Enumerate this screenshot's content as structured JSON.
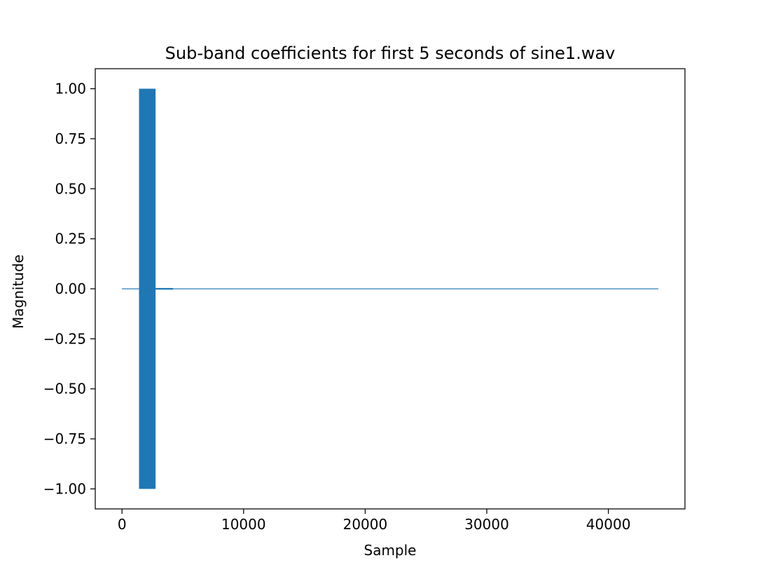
{
  "chart_data": {
    "type": "line",
    "title": "Sub-band coefficients for first 5 seconds of sine1.wav",
    "xlabel": "Sample",
    "ylabel": "Magnitude",
    "xlim": [
      -2200,
      46300
    ],
    "ylim": [
      -1.1,
      1.1
    ],
    "x_ticks": [
      0,
      10000,
      20000,
      30000,
      40000
    ],
    "x_tick_labels": [
      "0",
      "10000",
      "20000",
      "30000",
      "40000"
    ],
    "y_ticks": [
      1.0,
      0.75,
      0.5,
      0.25,
      0.0,
      -0.25,
      -0.5,
      -0.75,
      -1.0
    ],
    "y_tick_labels": [
      "1.00",
      "0.75",
      "0.50",
      "0.25",
      "0.00",
      "−0.25",
      "−0.50",
      "−0.75",
      "−1.00"
    ],
    "grid": false,
    "legend": "none",
    "series": [
      {
        "color": "#1f77b4",
        "x_range": [
          0,
          44100
        ],
        "segments": [
          {
            "x_start": 0,
            "x_end": 1400,
            "amplitude": 0.002
          },
          {
            "x_start": 1400,
            "x_end": 2760,
            "amplitude": 1.0
          },
          {
            "x_start": 2760,
            "x_end": 4200,
            "amplitude": 0.004
          },
          {
            "x_start": 4200,
            "x_end": 5500,
            "amplitude": 0.0005
          },
          {
            "x_start": 5500,
            "x_end": 8300,
            "amplitude": 0.002
          },
          {
            "x_start": 8300,
            "x_end": 13800,
            "amplitude": 0.0008
          },
          {
            "x_start": 13800,
            "x_end": 16500,
            "amplitude": 0.002
          },
          {
            "x_start": 16500,
            "x_end": 19400,
            "amplitude": 0.0008
          },
          {
            "x_start": 19400,
            "x_end": 20800,
            "amplitude": 0.002
          },
          {
            "x_start": 20800,
            "x_end": 23500,
            "amplitude": 0.0008
          },
          {
            "x_start": 23500,
            "x_end": 24900,
            "amplitude": 0.002
          },
          {
            "x_start": 24900,
            "x_end": 27700,
            "amplitude": 0.0008
          },
          {
            "x_start": 27700,
            "x_end": 30400,
            "amplitude": 0.002
          },
          {
            "x_start": 30400,
            "x_end": 36100,
            "amplitude": 0.0008
          },
          {
            "x_start": 36100,
            "x_end": 38700,
            "amplitude": 0.002
          },
          {
            "x_start": 38700,
            "x_end": 41100,
            "amplitude": 0.0008
          },
          {
            "x_start": 41100,
            "x_end": 42700,
            "amplitude": 0.002
          },
          {
            "x_start": 42700,
            "x_end": 44100,
            "amplitude": 0.0008
          }
        ]
      }
    ]
  }
}
